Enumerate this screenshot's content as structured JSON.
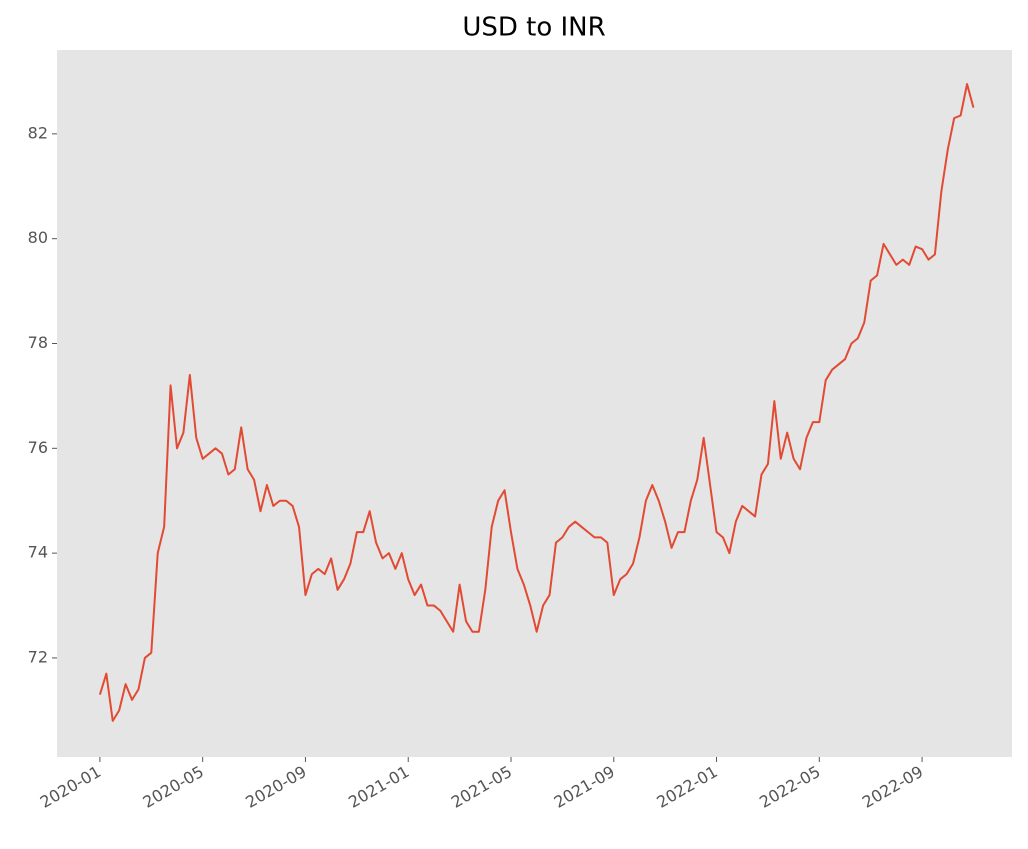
{
  "chart_data": {
    "type": "line",
    "title": "USD to INR",
    "x": [
      0,
      0.25,
      0.5,
      0.75,
      1,
      1.25,
      1.5,
      1.75,
      2,
      2.25,
      2.5,
      2.75,
      3,
      3.25,
      3.5,
      3.75,
      4,
      4.25,
      4.5,
      4.75,
      5,
      5.25,
      5.5,
      5.75,
      6,
      6.25,
      6.5,
      6.75,
      7,
      7.25,
      7.5,
      7.75,
      8,
      8.25,
      8.5,
      8.75,
      9,
      9.25,
      9.5,
      9.75,
      10,
      10.25,
      10.5,
      10.75,
      11,
      11.25,
      11.5,
      11.75,
      12,
      12.25,
      12.5,
      12.75,
      13,
      13.25,
      13.5,
      13.75,
      14,
      14.25,
      14.5,
      14.75,
      15,
      15.25,
      15.5,
      15.75,
      16,
      16.25,
      16.5,
      16.75,
      17,
      17.25,
      17.5,
      17.75,
      18,
      18.25,
      18.5,
      18.75,
      19,
      19.25,
      19.5,
      19.75,
      20,
      20.25,
      20.5,
      20.75,
      21,
      21.25,
      21.5,
      21.75,
      22,
      22.25,
      22.5,
      22.75,
      23,
      23.25,
      23.5,
      23.75,
      24,
      24.25,
      24.5,
      24.75,
      25,
      25.25,
      25.5,
      25.75,
      26,
      26.25,
      26.5,
      26.75,
      27,
      27.25,
      27.5,
      27.75,
      28,
      28.25,
      28.5,
      28.75,
      29,
      29.25,
      29.5,
      29.75,
      30,
      30.25,
      30.5,
      30.75,
      31,
      31.25,
      31.5,
      31.75,
      32,
      32.25,
      32.5,
      32.75,
      33,
      33.25,
      33.5,
      33.75,
      34
    ],
    "values": [
      71.3,
      71.7,
      70.8,
      71.0,
      71.5,
      71.2,
      71.4,
      72.0,
      72.1,
      74.0,
      74.5,
      77.2,
      76.0,
      76.3,
      77.4,
      76.2,
      75.8,
      75.9,
      76.0,
      75.9,
      75.5,
      75.6,
      76.4,
      75.6,
      75.4,
      74.8,
      75.3,
      74.9,
      75.0,
      75.0,
      74.9,
      74.5,
      73.2,
      73.6,
      73.7,
      73.6,
      73.9,
      73.3,
      73.5,
      73.8,
      74.4,
      74.4,
      74.8,
      74.2,
      73.9,
      74.0,
      73.7,
      74.0,
      73.5,
      73.2,
      73.4,
      73.0,
      73.0,
      72.9,
      72.7,
      72.5,
      73.4,
      72.7,
      72.5,
      72.5,
      73.3,
      74.5,
      75.0,
      75.2,
      74.4,
      73.7,
      73.4,
      73.0,
      72.5,
      73.0,
      73.2,
      74.2,
      74.3,
      74.5,
      74.6,
      74.5,
      74.4,
      74.3,
      74.3,
      74.2,
      73.2,
      73.5,
      73.6,
      73.8,
      74.3,
      75.0,
      75.3,
      75.0,
      74.6,
      74.1,
      74.4,
      74.4,
      75.0,
      75.4,
      76.2,
      75.3,
      74.4,
      74.3,
      74.0,
      74.6,
      74.9,
      74.8,
      74.7,
      75.5,
      75.7,
      76.9,
      75.8,
      76.3,
      75.8,
      75.6,
      76.2,
      76.5,
      76.5,
      77.3,
      77.5,
      77.6,
      77.7,
      78.0,
      78.1,
      78.4,
      79.2,
      79.3,
      79.9,
      79.7,
      79.5,
      79.6,
      79.5,
      79.85,
      79.8,
      79.6,
      79.7,
      80.9,
      81.7,
      82.3,
      82.35,
      82.95,
      82.5
    ],
    "color": "#e24a33",
    "xlim": [
      -1.67,
      35.5
    ],
    "xticks": [
      {
        "value": 0,
        "label": "2020-01"
      },
      {
        "value": 4,
        "label": "2020-05"
      },
      {
        "value": 8,
        "label": "2020-09"
      },
      {
        "value": 12,
        "label": "2021-01"
      },
      {
        "value": 16,
        "label": "2021-05"
      },
      {
        "value": 20,
        "label": "2021-09"
      },
      {
        "value": 24,
        "label": "2022-01"
      },
      {
        "value": 28,
        "label": "2022-05"
      },
      {
        "value": 32,
        "label": "2022-09"
      }
    ],
    "ylim": [
      70.11,
      83.6
    ],
    "yticks": [
      72,
      74,
      76,
      78,
      80,
      82
    ],
    "grid": false
  }
}
